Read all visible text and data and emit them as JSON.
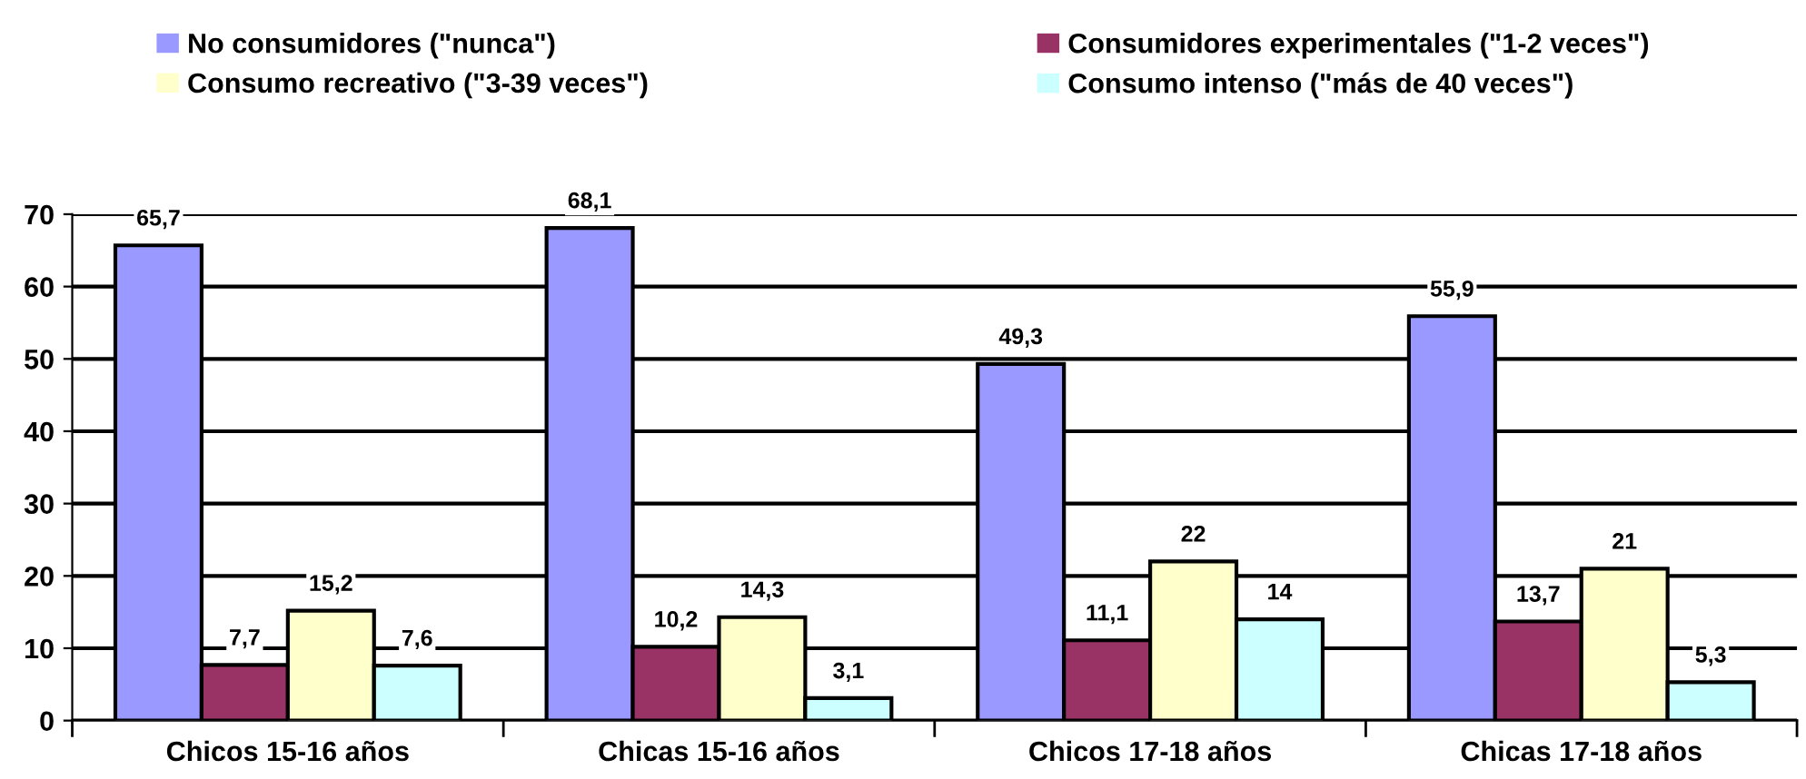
{
  "chart_data": {
    "type": "bar",
    "categories": [
      "Chicos 15-16 años",
      "Chicas 15-16 años",
      "Chicos 17-18 años",
      "Chicas 17-18 años"
    ],
    "series": [
      {
        "name": "No consumidores (\"nunca\")",
        "color": "#9999ff",
        "values": [
          65.7,
          68.1,
          49.3,
          55.9
        ],
        "value_labels": [
          "65,7",
          "68,1",
          "49,3",
          "55,9"
        ]
      },
      {
        "name": "Consumidores experimentales (\"1-2 veces\")",
        "color": "#993366",
        "values": [
          7.7,
          10.2,
          11.1,
          13.7
        ],
        "value_labels": [
          "7,7",
          "10,2",
          "11,1",
          "13,7"
        ]
      },
      {
        "name": "Consumo recreativo (\"3-39 veces\")",
        "color": "#ffffcc",
        "values": [
          15.2,
          14.3,
          22,
          21
        ],
        "value_labels": [
          "15,2",
          "14,3",
          "22",
          "21"
        ]
      },
      {
        "name": "Consumo intenso (\"más de 40 veces\")",
        "color": "#ccffff",
        "values": [
          7.6,
          3.1,
          14,
          5.3
        ],
        "value_labels": [
          "7,6",
          "3,1",
          "14",
          "5,3"
        ]
      }
    ],
    "ylim": [
      0,
      70
    ],
    "yticks": [
      0,
      10,
      20,
      30,
      40,
      50,
      60,
      70
    ],
    "grid": "y",
    "legend": "top"
  }
}
